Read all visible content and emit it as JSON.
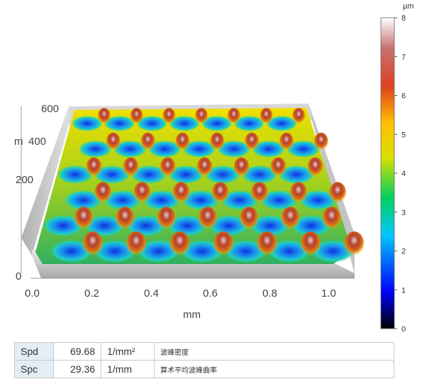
{
  "surface_view": {
    "y_axis_label": "m",
    "y_ticks": [
      "0",
      "200",
      "400",
      "600"
    ],
    "x_ticks": [
      "0.0",
      "0.2",
      "0.4",
      "0.6",
      "0.8",
      "1.0"
    ],
    "x_axis_label": "mm"
  },
  "colorbar": {
    "unit": "µm",
    "ticks": [
      "0",
      "1",
      "2",
      "3",
      "4",
      "5",
      "6",
      "7",
      "8"
    ],
    "range": [
      0,
      8
    ],
    "colors": [
      "#000000",
      "#0000ff",
      "#00c8ff",
      "#00d060",
      "#d8e000",
      "#ffc000",
      "#e04020",
      "#ffffff"
    ]
  },
  "parameters": [
    {
      "name": "Spd",
      "value": "69.68",
      "unit": "1/mm²",
      "description": "波峰密度"
    },
    {
      "name": "Spc",
      "value": "29.36",
      "unit": "1/mm",
      "description": "算术平均波峰曲率"
    }
  ]
}
